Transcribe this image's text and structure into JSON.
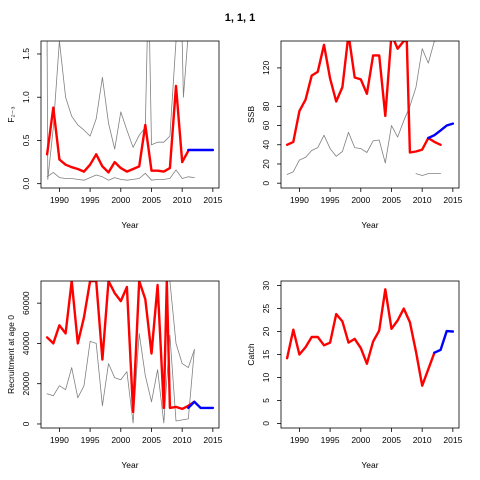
{
  "figure_title": "1, 1, 1",
  "colors": {
    "assessment": "#ff0000",
    "forecast": "#0000ff",
    "retro": "#808080",
    "axes": "#000000"
  },
  "chart_data": [
    {
      "type": "line",
      "xlabel": "Year",
      "ylabel": "F₂₋₃",
      "xlim": [
        1987,
        2016
      ],
      "ylim": [
        -0.05,
        1.65
      ],
      "xticks": [
        1990,
        1995,
        2000,
        2005,
        2010,
        2015
      ],
      "yticks": [
        0.0,
        0.5,
        1.0,
        1.5
      ],
      "yticklabels": [
        "0.0",
        "0.5",
        "1.0",
        "1.5"
      ],
      "series": [
        {
          "style": "retro",
          "x": [
            1988,
            1988,
            1988.1,
            1989,
            1990,
            1991,
            1992,
            1993,
            1994,
            1995,
            1996,
            1997,
            1998,
            1999,
            2000,
            2001,
            2002,
            2003,
            2004,
            2004.3,
            2004.7,
            2005,
            2006,
            2007,
            2008,
            2009,
            2010,
            2010.2,
            2010.9
          ],
          "y": [
            1.48,
            1.65,
            0.05,
            0.65,
            1.65,
            1.0,
            0.78,
            0.68,
            0.62,
            0.55,
            0.75,
            1.23,
            0.7,
            0.4,
            0.83,
            0.62,
            0.42,
            0.56,
            0.65,
            1.65,
            1.65,
            0.45,
            0.48,
            0.48,
            0.55,
            1.65,
            1.65,
            1.0,
            1.65
          ]
        },
        {
          "style": "retro",
          "x": [
            1988,
            1989,
            1990,
            1991,
            1992,
            1993,
            1994,
            1995,
            1996,
            1997,
            1998,
            1999,
            2000,
            2001,
            2002,
            2003,
            2004,
            2005,
            2006,
            2007,
            2008,
            2009,
            2010,
            2011,
            2012
          ],
          "y": [
            0.08,
            0.13,
            0.07,
            0.06,
            0.06,
            0.05,
            0.04,
            0.07,
            0.1,
            0.08,
            0.04,
            0.07,
            0.05,
            0.04,
            0.05,
            0.06,
            0.12,
            0.04,
            0.05,
            0.05,
            0.06,
            0.16,
            0.06,
            0.08,
            0.07
          ]
        },
        {
          "style": "assessment",
          "x": [
            1988,
            1989,
            1990,
            1991,
            1992,
            1993,
            1994,
            1995,
            1996,
            1997,
            1998,
            1999,
            2000,
            2001,
            2002,
            2003,
            2004,
            2005,
            2006,
            2007,
            2008,
            2009,
            2010,
            2011
          ],
          "y": [
            0.34,
            0.88,
            0.28,
            0.22,
            0.19,
            0.17,
            0.14,
            0.22,
            0.34,
            0.2,
            0.13,
            0.25,
            0.18,
            0.14,
            0.17,
            0.2,
            0.68,
            0.15,
            0.15,
            0.14,
            0.18,
            1.13,
            0.25,
            0.38
          ]
        },
        {
          "style": "forecast",
          "x": [
            2011,
            2012,
            2013,
            2014,
            2015
          ],
          "y": [
            0.39,
            0.39,
            0.39,
            0.39,
            0.39
          ]
        }
      ]
    },
    {
      "type": "line",
      "xlabel": "Year",
      "ylabel": "SSB",
      "xlim": [
        1987,
        2016
      ],
      "ylim": [
        -5,
        148
      ],
      "xticks": [
        1990,
        1995,
        2000,
        2005,
        2010,
        2015
      ],
      "yticks": [
        0,
        20,
        40,
        60,
        80,
        120
      ],
      "yticklabels": [
        "0",
        "20",
        "40",
        "60",
        "80",
        "120"
      ],
      "series": [
        {
          "style": "retro",
          "x": [
            1988,
            1989,
            1990,
            1991,
            1992,
            1993,
            1994,
            1995,
            1996,
            1997,
            1998,
            1999,
            2000,
            2001,
            2002,
            2003,
            2004,
            2005,
            2006,
            2007,
            2008,
            2009,
            2010,
            2011,
            2012,
            2012.3
          ],
          "y": [
            9,
            12,
            24,
            27,
            34,
            37,
            50,
            36,
            28,
            33,
            53,
            37,
            36,
            32,
            44,
            45,
            21,
            60,
            48,
            65,
            80,
            100,
            140,
            125,
            148,
            148
          ]
        },
        {
          "style": "retro",
          "x": [
            2009,
            2010,
            2011,
            2012,
            2013
          ],
          "y": [
            10,
            8,
            10,
            10,
            10
          ]
        },
        {
          "style": "assessment",
          "x": [
            1988,
            1989,
            1990,
            1991,
            1992,
            1993,
            1994,
            1995,
            1996,
            1997,
            1998,
            1999,
            2000,
            2001,
            2002,
            2003,
            2004,
            2005,
            2006,
            2007,
            2007.5,
            2008,
            2009,
            2010,
            2011,
            2012,
            2013
          ],
          "y": [
            40,
            43,
            75,
            87,
            112,
            116,
            144,
            109,
            85,
            100,
            155,
            110,
            108,
            93,
            133,
            133,
            70,
            155,
            140,
            148,
            148,
            32,
            33,
            35,
            47,
            43,
            40
          ]
        },
        {
          "style": "forecast",
          "x": [
            2011,
            2012,
            2013,
            2014,
            2015
          ],
          "y": [
            47,
            50,
            55,
            60,
            62
          ]
        }
      ]
    },
    {
      "type": "line",
      "xlabel": "Year",
      "ylabel": "Recruitment at age 0",
      "xlim": [
        1987,
        2016
      ],
      "ylim": [
        -2000,
        71000
      ],
      "xticks": [
        1990,
        1995,
        2000,
        2005,
        2010,
        2015
      ],
      "yticks": [
        0,
        20000,
        40000,
        60000
      ],
      "yticklabels": [
        "0",
        "20000",
        "40000",
        "60000"
      ],
      "series": [
        {
          "style": "retro",
          "x": [
            1988,
            1989,
            1990,
            1991,
            1992,
            1993,
            1994,
            1995,
            1996,
            1997,
            1998,
            1999,
            2000,
            2001,
            2002,
            2003,
            2004,
            2005,
            2006,
            2007,
            2008,
            2009,
            2010,
            2011,
            2012
          ],
          "y": [
            15000,
            14000,
            19000,
            17000,
            28000,
            13000,
            19000,
            41000,
            40000,
            9000,
            30000,
            23000,
            22000,
            26000,
            500,
            45000,
            24000,
            11000,
            27000,
            500,
            44000,
            1500,
            2000,
            2500,
            37000
          ]
        },
        {
          "style": "retro",
          "x": [
            2007.5,
            2008,
            2009,
            2010,
            2011,
            2012
          ],
          "y": [
            71000,
            71000,
            40000,
            30000,
            28000,
            37000
          ]
        },
        {
          "style": "assessment",
          "x": [
            1988,
            1989,
            1990,
            1991,
            1992,
            1993,
            1994,
            1995,
            1996,
            1997,
            1998,
            1999,
            2000,
            2001,
            2002,
            2003,
            2004,
            2005,
            2006,
            2007,
            2007.5,
            2008,
            2009,
            2010,
            2011,
            2012
          ],
          "y": [
            43000,
            40000,
            49000,
            45000,
            71000,
            40000,
            53000,
            71000,
            71000,
            32000,
            71000,
            65000,
            61000,
            68000,
            6000,
            71000,
            62000,
            35000,
            69000,
            8000,
            71000,
            8000,
            8500,
            7500,
            9000,
            11000
          ]
        },
        {
          "style": "forecast",
          "x": [
            2011,
            2012,
            2013,
            2014,
            2015
          ],
          "y": [
            8000,
            11000,
            8000,
            8000,
            8000
          ]
        }
      ]
    },
    {
      "type": "line",
      "xlabel": "Year",
      "ylabel": "Catch",
      "xlim": [
        1987,
        2016
      ],
      "ylim": [
        -1,
        31
      ],
      "xticks": [
        1990,
        1995,
        2000,
        2005,
        2010,
        2015
      ],
      "yticks": [
        0,
        5,
        10,
        15,
        20,
        25,
        30
      ],
      "yticklabels": [
        "0",
        "5",
        "10",
        "15",
        "20",
        "25",
        "30"
      ],
      "series": [
        {
          "style": "assessment",
          "x": [
            1988,
            1989,
            1990,
            1991,
            1992,
            1993,
            1994,
            1995,
            1996,
            1997,
            1998,
            1999,
            2000,
            2001,
            2002,
            2003,
            2004,
            2005,
            2006,
            2007,
            2008,
            2009,
            2010,
            2011,
            2012
          ],
          "y": [
            14.2,
            20.4,
            15.0,
            16.6,
            18.8,
            18.8,
            17.0,
            17.6,
            23.8,
            22.2,
            17.6,
            18.4,
            16.4,
            13.0,
            17.8,
            20.2,
            29.2,
            20.6,
            22.4,
            25.0,
            22.0,
            15.6,
            8.2,
            11.8,
            15.4
          ]
        },
        {
          "style": "forecast",
          "x": [
            2012,
            2013,
            2014,
            2015
          ],
          "y": [
            15.4,
            16.0,
            20.1,
            20.0
          ]
        }
      ]
    }
  ]
}
